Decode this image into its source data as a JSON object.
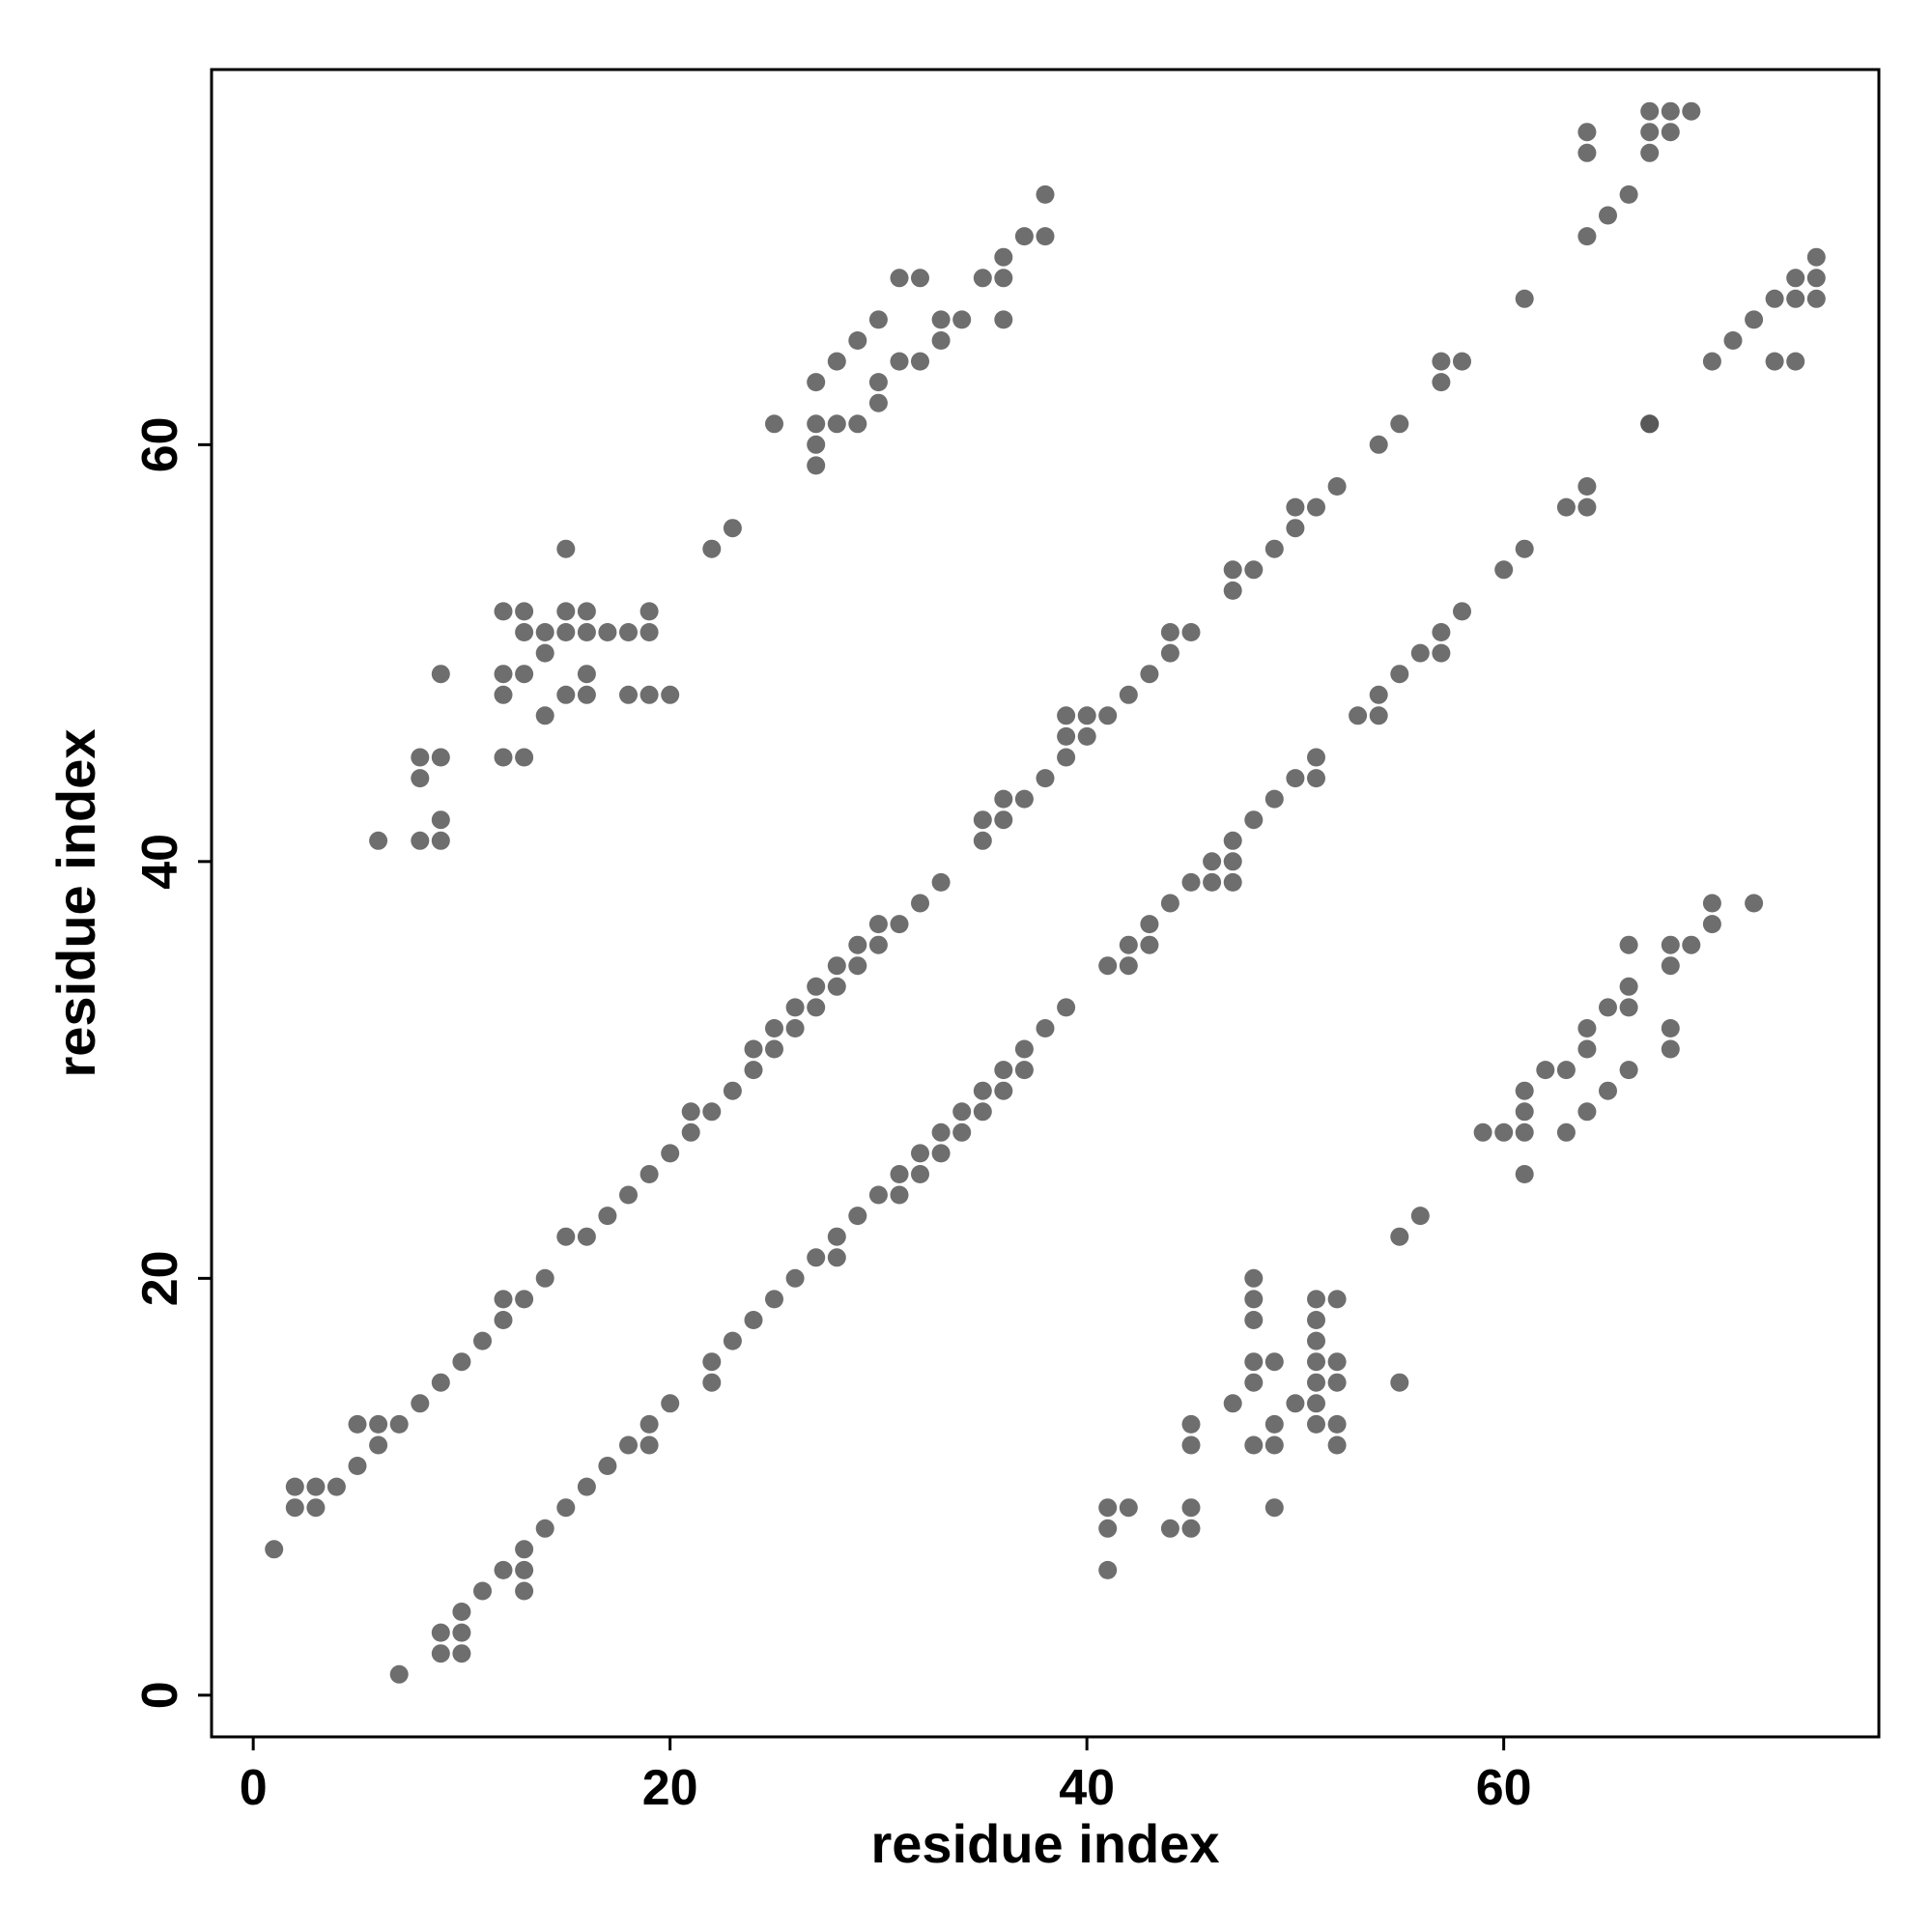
{
  "chart_data": {
    "type": "scatter",
    "title": "",
    "xlabel": "residue index",
    "ylabel": "residue index",
    "xlim": [
      -2,
      78
    ],
    "ylim": [
      -2,
      78
    ],
    "xticks": [
      0,
      20,
      40,
      60
    ],
    "yticks": [
      0,
      20,
      40,
      60
    ],
    "grid": false,
    "legend": "none",
    "point_color": "#555555",
    "series": [
      {
        "points": [
          [
            1,
            7
          ],
          [
            2,
            9
          ],
          [
            2,
            10
          ],
          [
            3,
            9
          ],
          [
            3,
            10
          ],
          [
            4,
            10
          ],
          [
            5,
            11
          ],
          [
            5,
            13
          ],
          [
            6,
            12
          ],
          [
            6,
            13
          ],
          [
            7,
            13
          ],
          [
            8,
            14
          ],
          [
            9,
            15
          ],
          [
            10,
            16
          ],
          [
            11,
            17
          ],
          [
            12,
            18
          ],
          [
            12,
            19
          ],
          [
            13,
            19
          ],
          [
            14,
            20
          ],
          [
            15,
            22
          ],
          [
            16,
            22
          ],
          [
            17,
            23
          ],
          [
            18,
            24
          ],
          [
            19,
            25
          ],
          [
            20,
            26
          ],
          [
            21,
            27
          ],
          [
            21,
            28
          ],
          [
            22,
            28
          ],
          [
            23,
            29
          ],
          [
            24,
            30
          ],
          [
            24,
            31
          ],
          [
            25,
            31
          ],
          [
            25,
            32
          ],
          [
            26,
            32
          ],
          [
            26,
            33
          ],
          [
            27,
            33
          ],
          [
            27,
            34
          ],
          [
            28,
            34
          ],
          [
            28,
            35
          ],
          [
            29,
            35
          ],
          [
            29,
            36
          ],
          [
            30,
            36
          ],
          [
            30,
            37
          ],
          [
            31,
            37
          ],
          [
            32,
            38
          ],
          [
            33,
            39
          ],
          [
            35,
            41
          ],
          [
            35,
            42
          ],
          [
            36,
            42
          ],
          [
            36,
            43
          ],
          [
            37,
            43
          ],
          [
            38,
            44
          ],
          [
            39,
            45
          ],
          [
            39,
            46
          ],
          [
            39,
            47
          ],
          [
            40,
            46
          ],
          [
            40,
            47
          ],
          [
            41,
            47
          ],
          [
            42,
            48
          ],
          [
            43,
            49
          ],
          [
            44,
            50
          ],
          [
            44,
            51
          ],
          [
            45,
            51
          ],
          [
            47,
            53
          ],
          [
            47,
            54
          ],
          [
            48,
            54
          ],
          [
            49,
            55
          ],
          [
            50,
            56
          ],
          [
            50,
            57
          ],
          [
            51,
            57
          ],
          [
            52,
            58
          ],
          [
            54,
            60
          ],
          [
            55,
            61
          ],
          [
            57,
            63
          ],
          [
            57,
            64
          ],
          [
            58,
            64
          ],
          [
            61,
            67
          ],
          [
            7,
            1
          ],
          [
            9,
            2
          ],
          [
            9,
            3
          ],
          [
            10,
            2
          ],
          [
            10,
            3
          ],
          [
            10,
            4
          ],
          [
            11,
            5
          ],
          [
            12,
            6
          ],
          [
            13,
            5
          ],
          [
            13,
            6
          ],
          [
            13,
            7
          ],
          [
            14,
            8
          ],
          [
            15,
            9
          ],
          [
            16,
            10
          ],
          [
            17,
            11
          ],
          [
            18,
            12
          ],
          [
            19,
            12
          ],
          [
            19,
            13
          ],
          [
            20,
            14
          ],
          [
            22,
            15
          ],
          [
            22,
            16
          ],
          [
            23,
            17
          ],
          [
            24,
            18
          ],
          [
            25,
            19
          ],
          [
            26,
            20
          ],
          [
            27,
            21
          ],
          [
            28,
            21
          ],
          [
            28,
            22
          ],
          [
            29,
            23
          ],
          [
            30,
            24
          ],
          [
            31,
            24
          ],
          [
            31,
            25
          ],
          [
            32,
            25
          ],
          [
            32,
            26
          ],
          [
            33,
            26
          ],
          [
            33,
            27
          ],
          [
            34,
            27
          ],
          [
            34,
            28
          ],
          [
            35,
            28
          ],
          [
            35,
            29
          ],
          [
            36,
            29
          ],
          [
            36,
            30
          ],
          [
            37,
            30
          ],
          [
            37,
            31
          ],
          [
            38,
            32
          ],
          [
            39,
            33
          ],
          [
            41,
            35
          ],
          [
            42,
            35
          ],
          [
            42,
            36
          ],
          [
            43,
            36
          ],
          [
            43,
            37
          ],
          [
            44,
            38
          ],
          [
            45,
            39
          ],
          [
            46,
            39
          ],
          [
            46,
            40
          ],
          [
            47,
            39
          ],
          [
            47,
            40
          ],
          [
            47,
            41
          ],
          [
            48,
            42
          ],
          [
            49,
            43
          ],
          [
            50,
            44
          ],
          [
            51,
            44
          ],
          [
            51,
            45
          ],
          [
            53,
            47
          ],
          [
            54,
            47
          ],
          [
            54,
            48
          ],
          [
            55,
            49
          ],
          [
            56,
            50
          ],
          [
            57,
            50
          ],
          [
            57,
            51
          ],
          [
            58,
            52
          ],
          [
            60,
            54
          ],
          [
            61,
            55
          ],
          [
            63,
            57
          ],
          [
            64,
            57
          ],
          [
            64,
            58
          ],
          [
            67,
            61
          ],
          [
            6,
            41
          ],
          [
            8,
            41
          ],
          [
            8,
            44
          ],
          [
            8,
            45
          ],
          [
            9,
            41
          ],
          [
            9,
            42
          ],
          [
            9,
            45
          ],
          [
            9,
            49
          ],
          [
            12,
            45
          ],
          [
            12,
            48
          ],
          [
            12,
            49
          ],
          [
            12,
            52
          ],
          [
            13,
            45
          ],
          [
            13,
            49
          ],
          [
            13,
            51
          ],
          [
            13,
            52
          ],
          [
            14,
            47
          ],
          [
            14,
            50
          ],
          [
            14,
            51
          ],
          [
            15,
            48
          ],
          [
            15,
            51
          ],
          [
            15,
            52
          ],
          [
            15,
            55
          ],
          [
            16,
            48
          ],
          [
            16,
            49
          ],
          [
            16,
            51
          ],
          [
            16,
            52
          ],
          [
            17,
            51
          ],
          [
            18,
            48
          ],
          [
            18,
            51
          ],
          [
            19,
            48
          ],
          [
            19,
            51
          ],
          [
            19,
            52
          ],
          [
            20,
            48
          ],
          [
            22,
            55
          ],
          [
            23,
            56
          ],
          [
            25,
            61
          ],
          [
            27,
            59
          ],
          [
            27,
            60
          ],
          [
            27,
            61
          ],
          [
            27,
            63
          ],
          [
            28,
            61
          ],
          [
            28,
            64
          ],
          [
            29,
            61
          ],
          [
            29,
            65
          ],
          [
            30,
            62
          ],
          [
            30,
            63
          ],
          [
            30,
            66
          ],
          [
            31,
            64
          ],
          [
            31,
            68
          ],
          [
            32,
            64
          ],
          [
            32,
            68
          ],
          [
            33,
            65
          ],
          [
            33,
            66
          ],
          [
            34,
            66
          ],
          [
            35,
            68
          ],
          [
            36,
            66
          ],
          [
            36,
            68
          ],
          [
            36,
            69
          ],
          [
            37,
            70
          ],
          [
            38,
            70
          ],
          [
            38,
            72
          ],
          [
            41,
            6
          ],
          [
            41,
            8
          ],
          [
            41,
            9
          ],
          [
            42,
            9
          ],
          [
            44,
            8
          ],
          [
            45,
            8
          ],
          [
            45,
            9
          ],
          [
            45,
            12
          ],
          [
            45,
            13
          ],
          [
            47,
            14
          ],
          [
            48,
            12
          ],
          [
            48,
            15
          ],
          [
            48,
            16
          ],
          [
            48,
            18
          ],
          [
            48,
            19
          ],
          [
            48,
            20
          ],
          [
            49,
            9
          ],
          [
            49,
            12
          ],
          [
            49,
            13
          ],
          [
            49,
            16
          ],
          [
            50,
            14
          ],
          [
            51,
            13
          ],
          [
            51,
            14
          ],
          [
            51,
            15
          ],
          [
            51,
            16
          ],
          [
            51,
            17
          ],
          [
            51,
            18
          ],
          [
            51,
            19
          ],
          [
            52,
            12
          ],
          [
            52,
            13
          ],
          [
            52,
            15
          ],
          [
            52,
            16
          ],
          [
            52,
            19
          ],
          [
            55,
            15
          ],
          [
            55,
            22
          ],
          [
            56,
            23
          ],
          [
            59,
            27
          ],
          [
            60,
            27
          ],
          [
            61,
            25
          ],
          [
            61,
            27
          ],
          [
            61,
            28
          ],
          [
            61,
            29
          ],
          [
            62,
            30
          ],
          [
            63,
            27
          ],
          [
            63,
            30
          ],
          [
            64,
            28
          ],
          [
            64,
            31
          ],
          [
            64,
            32
          ],
          [
            65,
            29
          ],
          [
            65,
            33
          ],
          [
            66,
            30
          ],
          [
            66,
            33
          ],
          [
            66,
            34
          ],
          [
            66,
            36
          ],
          [
            68,
            31
          ],
          [
            68,
            32
          ],
          [
            68,
            35
          ],
          [
            68,
            36
          ],
          [
            69,
            36
          ],
          [
            70,
            37
          ],
          [
            70,
            38
          ],
          [
            72,
            38
          ],
          [
            64,
            70
          ],
          [
            64,
            74
          ],
          [
            64,
            75
          ],
          [
            65,
            71
          ],
          [
            66,
            72
          ],
          [
            67,
            61
          ],
          [
            67,
            74
          ],
          [
            67,
            75
          ],
          [
            67,
            76
          ],
          [
            68,
            75
          ],
          [
            68,
            76
          ],
          [
            69,
            76
          ],
          [
            70,
            64
          ],
          [
            71,
            65
          ],
          [
            72,
            66
          ],
          [
            73,
            64
          ],
          [
            73,
            67
          ],
          [
            74,
            64
          ],
          [
            74,
            67
          ],
          [
            74,
            68
          ],
          [
            75,
            67
          ],
          [
            75,
            68
          ],
          [
            75,
            69
          ]
        ]
      }
    ]
  }
}
